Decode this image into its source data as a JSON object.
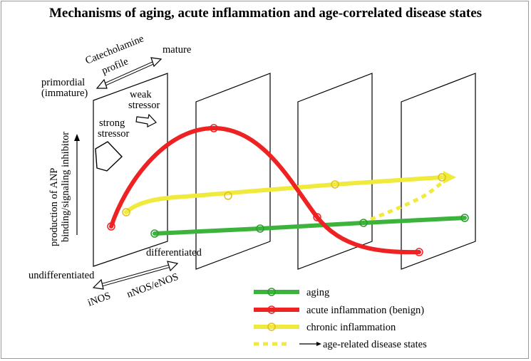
{
  "title": "Mechanisms of aging, acute inflammation and age-correlated disease states",
  "labels": {
    "catecholamine_line1": "Catecholamine",
    "catecholamine_line2": "profile",
    "mature": "mature",
    "primordial_line1": "primordial",
    "primordial_line2": "(immature)",
    "weak_line1": "weak",
    "weak_line2": "stressor",
    "strong_line1": "strong",
    "strong_line2": "stressor",
    "yaxis_line1": "production of ANP",
    "yaxis_line2": "binding/signaling inhibitor",
    "differentiated": "differentiated",
    "undifferentiated": "undifferentiated",
    "inos": "iNOS",
    "nnos": "nNOS/eNOS"
  },
  "legend": [
    {
      "label": "aging",
      "color": "#3cb43c",
      "style": "solid"
    },
    {
      "label": "acute inflammation (benign)",
      "color": "#ee2222",
      "style": "solid"
    },
    {
      "label": "chronic inflammation",
      "color": "#f0ea3c",
      "style": "solid"
    },
    {
      "label": "age-related disease states",
      "color": "#f0ea3c",
      "style": "dotted"
    }
  ],
  "colors": {
    "aging": "#3cb43c",
    "acute": "#ee2222",
    "chronic": "#f0ea3c"
  }
}
